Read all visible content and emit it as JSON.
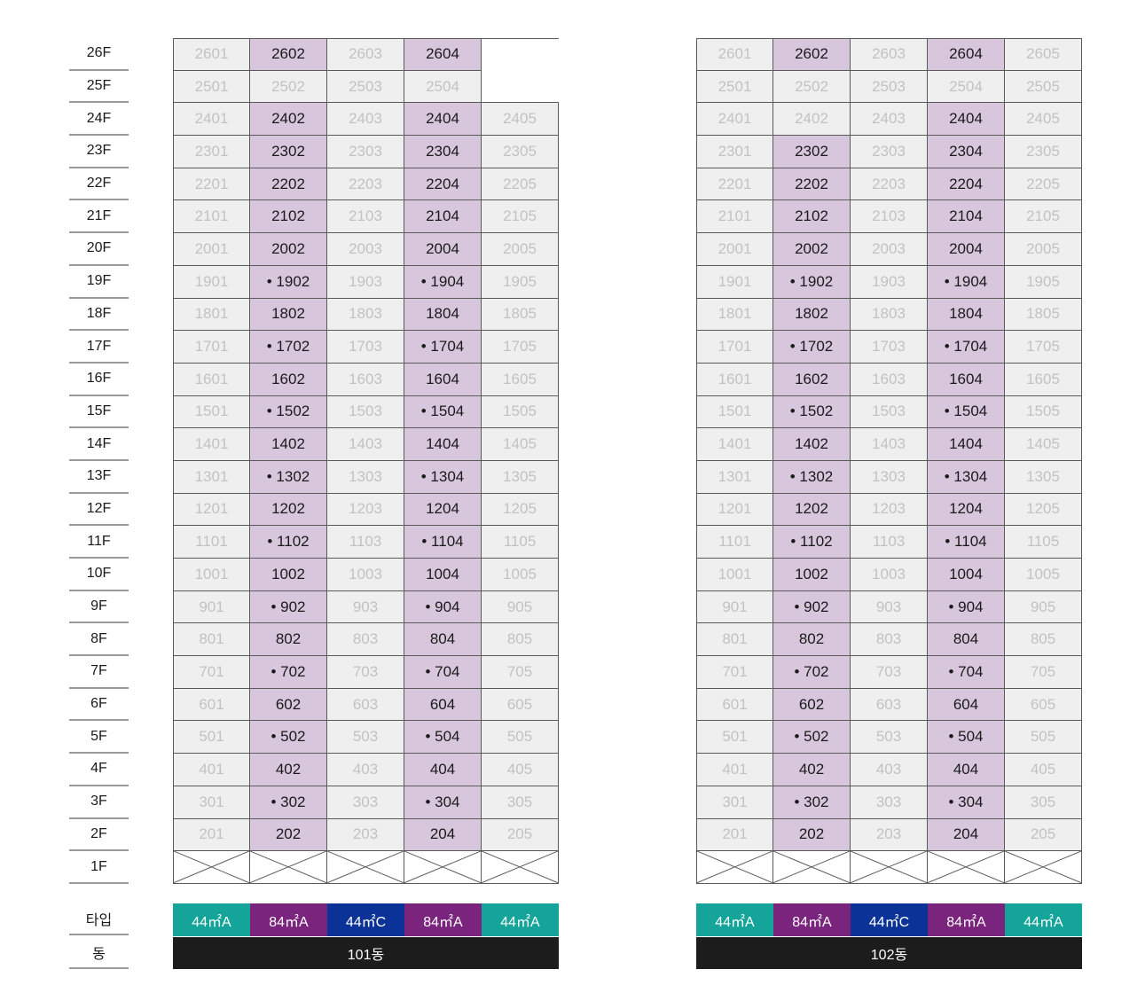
{
  "floor_labels": [
    "26F",
    "25F",
    "24F",
    "23F",
    "22F",
    "21F",
    "20F",
    "19F",
    "18F",
    "17F",
    "16F",
    "15F",
    "14F",
    "13F",
    "12F",
    "11F",
    "10F",
    "9F",
    "8F",
    "7F",
    "6F",
    "5F",
    "4F",
    "3F",
    "2F",
    "1F"
  ],
  "type_row_label": "타입",
  "dong_row_label": "동",
  "colors": {
    "highlight": "#d8c6dd",
    "unavailable": "#efefef",
    "type_teal": "#14a499",
    "type_purple": "#7a247d",
    "type_blue": "#0b3296",
    "dong_bar": "#1c1c1c"
  },
  "buildings": [
    {
      "id": "101",
      "dong_label": "101동",
      "types": [
        {
          "label": "44㎡A",
          "color": "#14a499"
        },
        {
          "label": "84㎡A",
          "color": "#7a247d"
        },
        {
          "label": "44㎡C",
          "color": "#0b3296"
        },
        {
          "label": "84㎡A",
          "color": "#7a247d"
        },
        {
          "label": "44㎡A",
          "color": "#14a499"
        }
      ],
      "rows": [
        [
          "2601",
          "2602",
          "2603",
          "2604",
          null
        ],
        [
          "2501",
          "2502",
          "2503",
          "2504",
          null
        ],
        [
          "2401",
          "2402",
          "2403",
          "2404",
          "2405"
        ],
        [
          "2301",
          "2302",
          "2303",
          "2304",
          "2305"
        ],
        [
          "2201",
          "2202",
          "2203",
          "2204",
          "2205"
        ],
        [
          "2101",
          "2102",
          "2103",
          "2104",
          "2105"
        ],
        [
          "2001",
          "2002",
          "2003",
          "2004",
          "2005"
        ],
        [
          "1901",
          "• 1902",
          "1903",
          "• 1904",
          "1905"
        ],
        [
          "1801",
          "1802",
          "1803",
          "1804",
          "1805"
        ],
        [
          "1701",
          "• 1702",
          "1703",
          "• 1704",
          "1705"
        ],
        [
          "1601",
          "1602",
          "1603",
          "1604",
          "1605"
        ],
        [
          "1501",
          "• 1502",
          "1503",
          "• 1504",
          "1505"
        ],
        [
          "1401",
          "1402",
          "1403",
          "1404",
          "1405"
        ],
        [
          "1301",
          "• 1302",
          "1303",
          "• 1304",
          "1305"
        ],
        [
          "1201",
          "1202",
          "1203",
          "1204",
          "1205"
        ],
        [
          "1101",
          "• 1102",
          "1103",
          "• 1104",
          "1105"
        ],
        [
          "1001",
          "1002",
          "1003",
          "1004",
          "1005"
        ],
        [
          "901",
          "•  902",
          "903",
          "•  904",
          "905"
        ],
        [
          "801",
          "802",
          "803",
          "804",
          "805"
        ],
        [
          "701",
          "•  702",
          "703",
          "•  704",
          "705"
        ],
        [
          "601",
          "602",
          "603",
          "604",
          "605"
        ],
        [
          "501",
          "•  502",
          "503",
          "•  504",
          "505"
        ],
        [
          "401",
          "402",
          "403",
          "404",
          "405"
        ],
        [
          "301",
          "•  302",
          "303",
          "•  304",
          "305"
        ],
        [
          "201",
          "202",
          "203",
          "204",
          "205"
        ]
      ],
      "highlight": [
        [
          false,
          true,
          false,
          true,
          false
        ],
        [
          false,
          false,
          false,
          false,
          false
        ],
        [
          false,
          true,
          false,
          true,
          false
        ],
        [
          false,
          true,
          false,
          true,
          false
        ],
        [
          false,
          true,
          false,
          true,
          false
        ],
        [
          false,
          true,
          false,
          true,
          false
        ],
        [
          false,
          true,
          false,
          true,
          false
        ],
        [
          false,
          true,
          false,
          true,
          false
        ],
        [
          false,
          true,
          false,
          true,
          false
        ],
        [
          false,
          true,
          false,
          true,
          false
        ],
        [
          false,
          true,
          false,
          true,
          false
        ],
        [
          false,
          true,
          false,
          true,
          false
        ],
        [
          false,
          true,
          false,
          true,
          false
        ],
        [
          false,
          true,
          false,
          true,
          false
        ],
        [
          false,
          true,
          false,
          true,
          false
        ],
        [
          false,
          true,
          false,
          true,
          false
        ],
        [
          false,
          true,
          false,
          true,
          false
        ],
        [
          false,
          true,
          false,
          true,
          false
        ],
        [
          false,
          true,
          false,
          true,
          false
        ],
        [
          false,
          true,
          false,
          true,
          false
        ],
        [
          false,
          true,
          false,
          true,
          false
        ],
        [
          false,
          true,
          false,
          true,
          false
        ],
        [
          false,
          true,
          false,
          true,
          false
        ],
        [
          false,
          true,
          false,
          true,
          false
        ],
        [
          false,
          true,
          false,
          true,
          false
        ]
      ]
    },
    {
      "id": "102",
      "dong_label": "102동",
      "types": [
        {
          "label": "44㎡A",
          "color": "#14a499"
        },
        {
          "label": "84㎡A",
          "color": "#7a247d"
        },
        {
          "label": "44㎡C",
          "color": "#0b3296"
        },
        {
          "label": "84㎡A",
          "color": "#7a247d"
        },
        {
          "label": "44㎡A",
          "color": "#14a499"
        }
      ],
      "rows": [
        [
          "2601",
          "2602",
          "2603",
          "2604",
          "2605"
        ],
        [
          "2501",
          "2502",
          "2503",
          "2504",
          "2505"
        ],
        [
          "2401",
          "2402",
          "2403",
          "2404",
          "2405"
        ],
        [
          "2301",
          "2302",
          "2303",
          "2304",
          "2305"
        ],
        [
          "2201",
          "2202",
          "2203",
          "2204",
          "2205"
        ],
        [
          "2101",
          "2102",
          "2103",
          "2104",
          "2105"
        ],
        [
          "2001",
          "2002",
          "2003",
          "2004",
          "2005"
        ],
        [
          "1901",
          "• 1902",
          "1903",
          "• 1904",
          "1905"
        ],
        [
          "1801",
          "1802",
          "1803",
          "1804",
          "1805"
        ],
        [
          "1701",
          "• 1702",
          "1703",
          "• 1704",
          "1705"
        ],
        [
          "1601",
          "1602",
          "1603",
          "1604",
          "1605"
        ],
        [
          "1501",
          "• 1502",
          "1503",
          "• 1504",
          "1505"
        ],
        [
          "1401",
          "1402",
          "1403",
          "1404",
          "1405"
        ],
        [
          "1301",
          "• 1302",
          "1303",
          "• 1304",
          "1305"
        ],
        [
          "1201",
          "1202",
          "1203",
          "1204",
          "1205"
        ],
        [
          "1101",
          "• 1102",
          "1103",
          "• 1104",
          "1105"
        ],
        [
          "1001",
          "1002",
          "1003",
          "1004",
          "1005"
        ],
        [
          "901",
          "•  902",
          "903",
          "•  904",
          "905"
        ],
        [
          "801",
          "802",
          "803",
          "804",
          "805"
        ],
        [
          "701",
          "•  702",
          "703",
          "•  704",
          "705"
        ],
        [
          "601",
          "602",
          "603",
          "604",
          "605"
        ],
        [
          "501",
          "•  502",
          "503",
          "•  504",
          "505"
        ],
        [
          "401",
          "402",
          "403",
          "404",
          "405"
        ],
        [
          "301",
          "•  302",
          "303",
          "•  304",
          "305"
        ],
        [
          "201",
          "202",
          "203",
          "204",
          "205"
        ]
      ],
      "highlight": [
        [
          false,
          true,
          false,
          true,
          false
        ],
        [
          false,
          false,
          false,
          false,
          false
        ],
        [
          false,
          false,
          false,
          true,
          false
        ],
        [
          false,
          true,
          false,
          true,
          false
        ],
        [
          false,
          true,
          false,
          true,
          false
        ],
        [
          false,
          true,
          false,
          true,
          false
        ],
        [
          false,
          true,
          false,
          true,
          false
        ],
        [
          false,
          true,
          false,
          true,
          false
        ],
        [
          false,
          true,
          false,
          true,
          false
        ],
        [
          false,
          true,
          false,
          true,
          false
        ],
        [
          false,
          true,
          false,
          true,
          false
        ],
        [
          false,
          true,
          false,
          true,
          false
        ],
        [
          false,
          true,
          false,
          true,
          false
        ],
        [
          false,
          true,
          false,
          true,
          false
        ],
        [
          false,
          true,
          false,
          true,
          false
        ],
        [
          false,
          true,
          false,
          true,
          false
        ],
        [
          false,
          true,
          false,
          true,
          false
        ],
        [
          false,
          true,
          false,
          true,
          false
        ],
        [
          false,
          true,
          false,
          true,
          false
        ],
        [
          false,
          true,
          false,
          true,
          false
        ],
        [
          false,
          true,
          false,
          true,
          false
        ],
        [
          false,
          true,
          false,
          true,
          false
        ],
        [
          false,
          true,
          false,
          true,
          false
        ],
        [
          false,
          true,
          false,
          true,
          false
        ],
        [
          false,
          true,
          false,
          true,
          false
        ]
      ]
    }
  ]
}
